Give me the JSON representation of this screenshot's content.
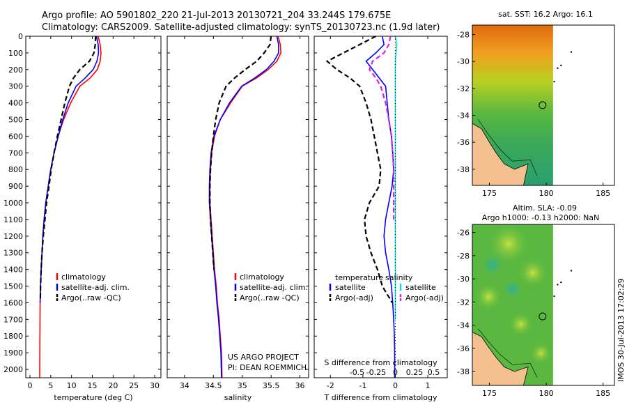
{
  "header": {
    "line1": "Argo profile: AO 5901802_220 21-Jul-2013 20130721_204 33.244S 179.675E",
    "line2": "Climatology: CARS2009. Satellite-adjusted climatology: synTS_20130723.nc (1.9d later)"
  },
  "credits": {
    "project": "US ARGO PROJECT",
    "pi": "PI: DEAN ROEMMICH",
    "stamp": "IMOS 30-Jul-2013 17:02:29"
  },
  "colors": {
    "climatology": "#ff0000",
    "satellite": "#0000ff",
    "argo": "#000000",
    "salinity_satellite": "#00e0e0",
    "salinity_argo": "#e020e0"
  },
  "chart_data": [
    {
      "type": "line",
      "id": "temperature",
      "xlabel": "temperature (deg C)",
      "ylim": [
        2050,
        0
      ],
      "xlim": [
        -1,
        31.5
      ],
      "xticks": [
        0,
        5,
        10,
        15,
        20,
        25,
        30
      ],
      "yticks": [
        0,
        100,
        200,
        300,
        400,
        500,
        600,
        700,
        800,
        900,
        1000,
        1100,
        1200,
        1300,
        1400,
        1500,
        1600,
        1700,
        1800,
        1900,
        2000
      ],
      "legend": [
        "climatology",
        "satellite-adj. clim.",
        "Argo(..raw -QC)"
      ],
      "series": [
        {
          "name": "climatology",
          "color": "#ff0000",
          "style": "solid",
          "x": [
            16.4,
            16.9,
            17.1,
            16.9,
            16.2,
            14.5,
            12.0,
            9.8,
            8.1,
            6.8,
            5.8,
            5.0,
            4.4,
            3.8,
            3.4,
            3.1,
            2.9,
            2.7,
            2.55,
            2.45
          ],
          "y": [
            0,
            50,
            100,
            150,
            200,
            250,
            300,
            400,
            500,
            600,
            700,
            800,
            900,
            1000,
            1100,
            1200,
            1300,
            1400,
            1500,
            1600
          ]
        },
        {
          "name": "satellite-adj. clim.",
          "color": "#0000ff",
          "style": "solid",
          "x": [
            16.0,
            16.4,
            16.5,
            16.1,
            15.2,
            13.3,
            11.1,
            9.2,
            7.9,
            6.8,
            5.8,
            5.0,
            4.4,
            3.8,
            3.4,
            3.1,
            2.9,
            2.7,
            2.55,
            2.45
          ],
          "y": [
            0,
            50,
            100,
            150,
            200,
            250,
            300,
            400,
            500,
            600,
            700,
            800,
            900,
            1000,
            1100,
            1200,
            1300,
            1400,
            1500,
            1600
          ]
        },
        {
          "name": "Argo(..raw -QC)",
          "color": "#000000",
          "style": "dashed",
          "x": [
            15.8,
            15.7,
            15.4,
            14.3,
            12.0,
            10.5,
            9.5,
            8.4,
            7.5,
            6.6,
            5.8,
            5.1,
            4.6,
            4.0,
            3.6,
            3.2,
            2.9,
            2.7,
            2.55,
            2.5
          ],
          "y": [
            0,
            50,
            100,
            150,
            200,
            250,
            300,
            400,
            500,
            600,
            700,
            800,
            900,
            1000,
            1100,
            1200,
            1300,
            1400,
            1500,
            1580
          ]
        }
      ],
      "tail": {
        "x": [
          2.45,
          2.4,
          2.35
        ],
        "y": [
          1600,
          1800,
          2050
        ]
      }
    },
    {
      "type": "line",
      "id": "salinity",
      "xlabel": "salinity",
      "xlim": [
        33.7,
        36.15
      ],
      "xticks": [
        34,
        34.5,
        35,
        35.5,
        36
      ],
      "xticklabels": [
        "34",
        "34.5",
        "35",
        "35.5",
        "36"
      ],
      "legend": [
        "climatology",
        "satellite-adj. clim.",
        "Argo(..raw -QC)"
      ],
      "series": [
        {
          "name": "climatology",
          "color": "#ff0000",
          "style": "solid",
          "x": [
            35.62,
            35.66,
            35.67,
            35.6,
            35.45,
            35.25,
            35.0,
            34.8,
            34.62,
            34.52,
            34.47,
            34.45,
            34.44,
            34.44,
            34.46,
            34.48,
            34.5,
            34.52,
            34.55,
            34.57,
            34.6,
            34.62,
            34.64,
            34.65
          ],
          "y": [
            0,
            50,
            100,
            150,
            200,
            250,
            300,
            400,
            500,
            600,
            700,
            800,
            900,
            1000,
            1100,
            1200,
            1300,
            1400,
            1500,
            1600,
            1700,
            1800,
            1900,
            2050
          ]
        },
        {
          "name": "satellite-adj. clim.",
          "color": "#0000ff",
          "style": "solid",
          "x": [
            35.6,
            35.63,
            35.63,
            35.55,
            35.42,
            35.22,
            34.99,
            34.78,
            34.62,
            34.51,
            34.46,
            34.44,
            34.43,
            34.43,
            34.45,
            34.47,
            34.49,
            34.51,
            34.54,
            34.56,
            34.59,
            34.61,
            34.63,
            34.64
          ],
          "y": [
            0,
            50,
            100,
            150,
            200,
            250,
            300,
            400,
            500,
            600,
            700,
            800,
            900,
            1000,
            1100,
            1200,
            1300,
            1400,
            1500,
            1600,
            1700,
            1800,
            1900,
            2050
          ]
        },
        {
          "name": "Argo(..raw -QC)",
          "color": "#000000",
          "style": "dashed",
          "x": [
            35.5,
            35.48,
            35.38,
            35.25,
            35.05,
            34.87,
            34.72,
            34.6,
            34.54,
            34.5,
            34.47,
            34.45,
            34.44,
            34.44,
            34.45,
            34.47,
            34.49,
            34.51
          ],
          "y": [
            0,
            50,
            100,
            150,
            200,
            250,
            300,
            400,
            500,
            600,
            700,
            800,
            900,
            1000,
            1100,
            1200,
            1300,
            1400
          ]
        }
      ]
    },
    {
      "type": "line",
      "id": "difference",
      "xlabel": "T difference from climatology",
      "xlabel_top": "S difference from climatology",
      "xlim": [
        -2.5,
        1.6
      ],
      "xticks": [
        -2,
        -1,
        0,
        1
      ],
      "xticklabels": [
        "-2",
        "-1",
        "0",
        "1"
      ],
      "top_ticks": [
        -0.5,
        -0.25,
        0,
        0.25,
        0.5
      ],
      "top_ticklabels": [
        "-0.5",
        "-0.25",
        "0",
        "0.25",
        "0.5"
      ],
      "legend_temperature": [
        "temperature",
        "satellite",
        "Argo(-adj)"
      ],
      "legend_salinity": [
        "salinity",
        "satellite",
        "Argo(-adj)"
      ],
      "series": [
        {
          "name": "satellite",
          "group": "temperature",
          "color": "#0000ff",
          "style": "solid",
          "x": [
            -0.4,
            -0.35,
            -0.6,
            -0.9,
            -0.7,
            -0.5,
            -0.3,
            -0.25,
            -0.2,
            -0.12,
            -0.08,
            -0.05,
            -0.1,
            -0.2,
            -0.3,
            -0.35,
            -0.3,
            -0.2,
            -0.12,
            -0.08,
            -0.05,
            -0.03,
            -0.02,
            -0.02
          ],
          "y": [
            0,
            50,
            100,
            150,
            200,
            250,
            300,
            400,
            500,
            600,
            700,
            800,
            900,
            1000,
            1100,
            1200,
            1300,
            1400,
            1500,
            1600,
            1700,
            1800,
            1900,
            2050
          ]
        },
        {
          "name": "Argo(-adj)",
          "group": "temperature",
          "color": "#000000",
          "style": "dashed",
          "x": [
            -0.6,
            -1.1,
            -1.6,
            -2.1,
            -1.8,
            -1.4,
            -1.1,
            -0.9,
            -0.75,
            -0.65,
            -0.55,
            -0.45,
            -0.5,
            -0.8,
            -0.95,
            -0.9,
            -0.75,
            -0.55,
            -0.4,
            -0.25,
            -0.15,
            -0.1
          ],
          "y": [
            0,
            50,
            100,
            150,
            200,
            250,
            300,
            400,
            500,
            600,
            700,
            800,
            900,
            1000,
            1100,
            1200,
            1300,
            1400,
            1500,
            1550,
            1580,
            1600
          ]
        },
        {
          "name": "satellite",
          "group": "salinity",
          "color": "#00e0e0",
          "style": "solid",
          "x": [
            0.0,
            0.05,
            0.02,
            0.0,
            0.0,
            0.0,
            0.0,
            0.0,
            0.0,
            0.0,
            0.0,
            0.0,
            0.0,
            0.0,
            0.0,
            0.0,
            0.0,
            0.0,
            0.0,
            0.0
          ],
          "y": [
            0,
            50,
            100,
            150,
            200,
            300,
            400,
            500,
            600,
            700,
            800,
            900,
            1000,
            1100,
            1200,
            1300,
            1400,
            1500,
            1600,
            1700
          ]
        },
        {
          "name": "Argo(-adj)",
          "group": "salinity",
          "color": "#e020e0",
          "style": "dashed",
          "x": [
            -0.15,
            -0.2,
            -0.35,
            -0.7,
            -0.8,
            -0.6,
            -0.45,
            -0.3,
            -0.2,
            -0.12,
            -0.08,
            -0.05,
            -0.05,
            -0.05,
            -0.05
          ],
          "y": [
            0,
            50,
            100,
            150,
            200,
            250,
            300,
            400,
            500,
            600,
            700,
            800,
            900,
            1000,
            1100
          ]
        }
      ]
    },
    {
      "type": "heatmap",
      "id": "sst-map",
      "title": "sat. SST: 16.2  Argo: 16.1",
      "xticks": [
        175,
        180,
        185
      ],
      "yticks": [
        -28,
        -30,
        -32,
        -34,
        -36,
        -38
      ],
      "xlim": [
        173.5,
        186
      ],
      "ylim": [
        -39.2,
        -27.3
      ],
      "marker": {
        "lon": 179.675,
        "lat": -33.244
      }
    },
    {
      "type": "heatmap",
      "id": "sla-map",
      "title_line1": "Altim. SLA: -0.09",
      "title_line2": "Argo h1000: -0.13 h2000: NaN",
      "xticks": [
        175,
        180,
        185
      ],
      "yticks": [
        -26,
        -28,
        -30,
        -32,
        -34,
        -36,
        -38
      ],
      "xlim": [
        173.5,
        186
      ],
      "ylim": [
        -39.2,
        -25.3
      ],
      "marker": {
        "lon": 179.675,
        "lat": -33.244
      }
    }
  ]
}
